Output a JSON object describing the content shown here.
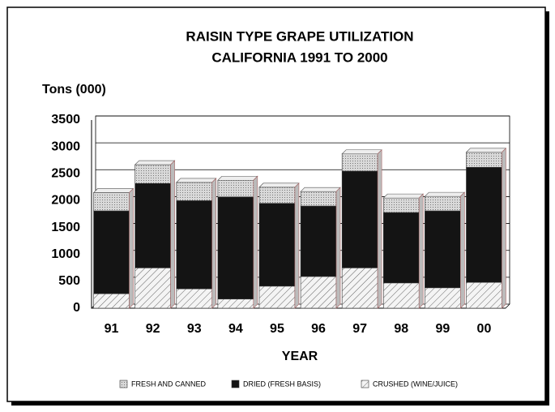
{
  "chart_data": {
    "type": "bar",
    "stacked": true,
    "title": "RAISIN TYPE GRAPE UTILIZATION",
    "subtitle": "CALIFORNIA 1991 TO 2000",
    "y_label": "Tons (000)",
    "x_label": "YEAR",
    "categories": [
      "91",
      "92",
      "93",
      "94",
      "95",
      "96",
      "97",
      "98",
      "99",
      "00"
    ],
    "series": [
      {
        "name": "FRESH AND CANNED",
        "color": "#d9d9d9",
        "values": [
          340,
          350,
          340,
          310,
          300,
          270,
          320,
          270,
          270,
          280
        ]
      },
      {
        "name": "DRIED (FRESH BASIS)",
        "color": "#141414",
        "values": [
          1540,
          1570,
          1640,
          1900,
          1540,
          1310,
          1800,
          1310,
          1430,
          2140
        ]
      },
      {
        "name": "CRUSHED (WINE/JUICE)",
        "color": "#f4f4f4",
        "values": [
          270,
          750,
          360,
          170,
          410,
          590,
          750,
          470,
          380,
          480
        ]
      }
    ],
    "ylim": [
      0,
      3500
    ],
    "yticks": [
      0,
      500,
      1000,
      1500,
      2000,
      2500,
      3000,
      3500
    ],
    "grid": true,
    "legend": "bottom"
  }
}
